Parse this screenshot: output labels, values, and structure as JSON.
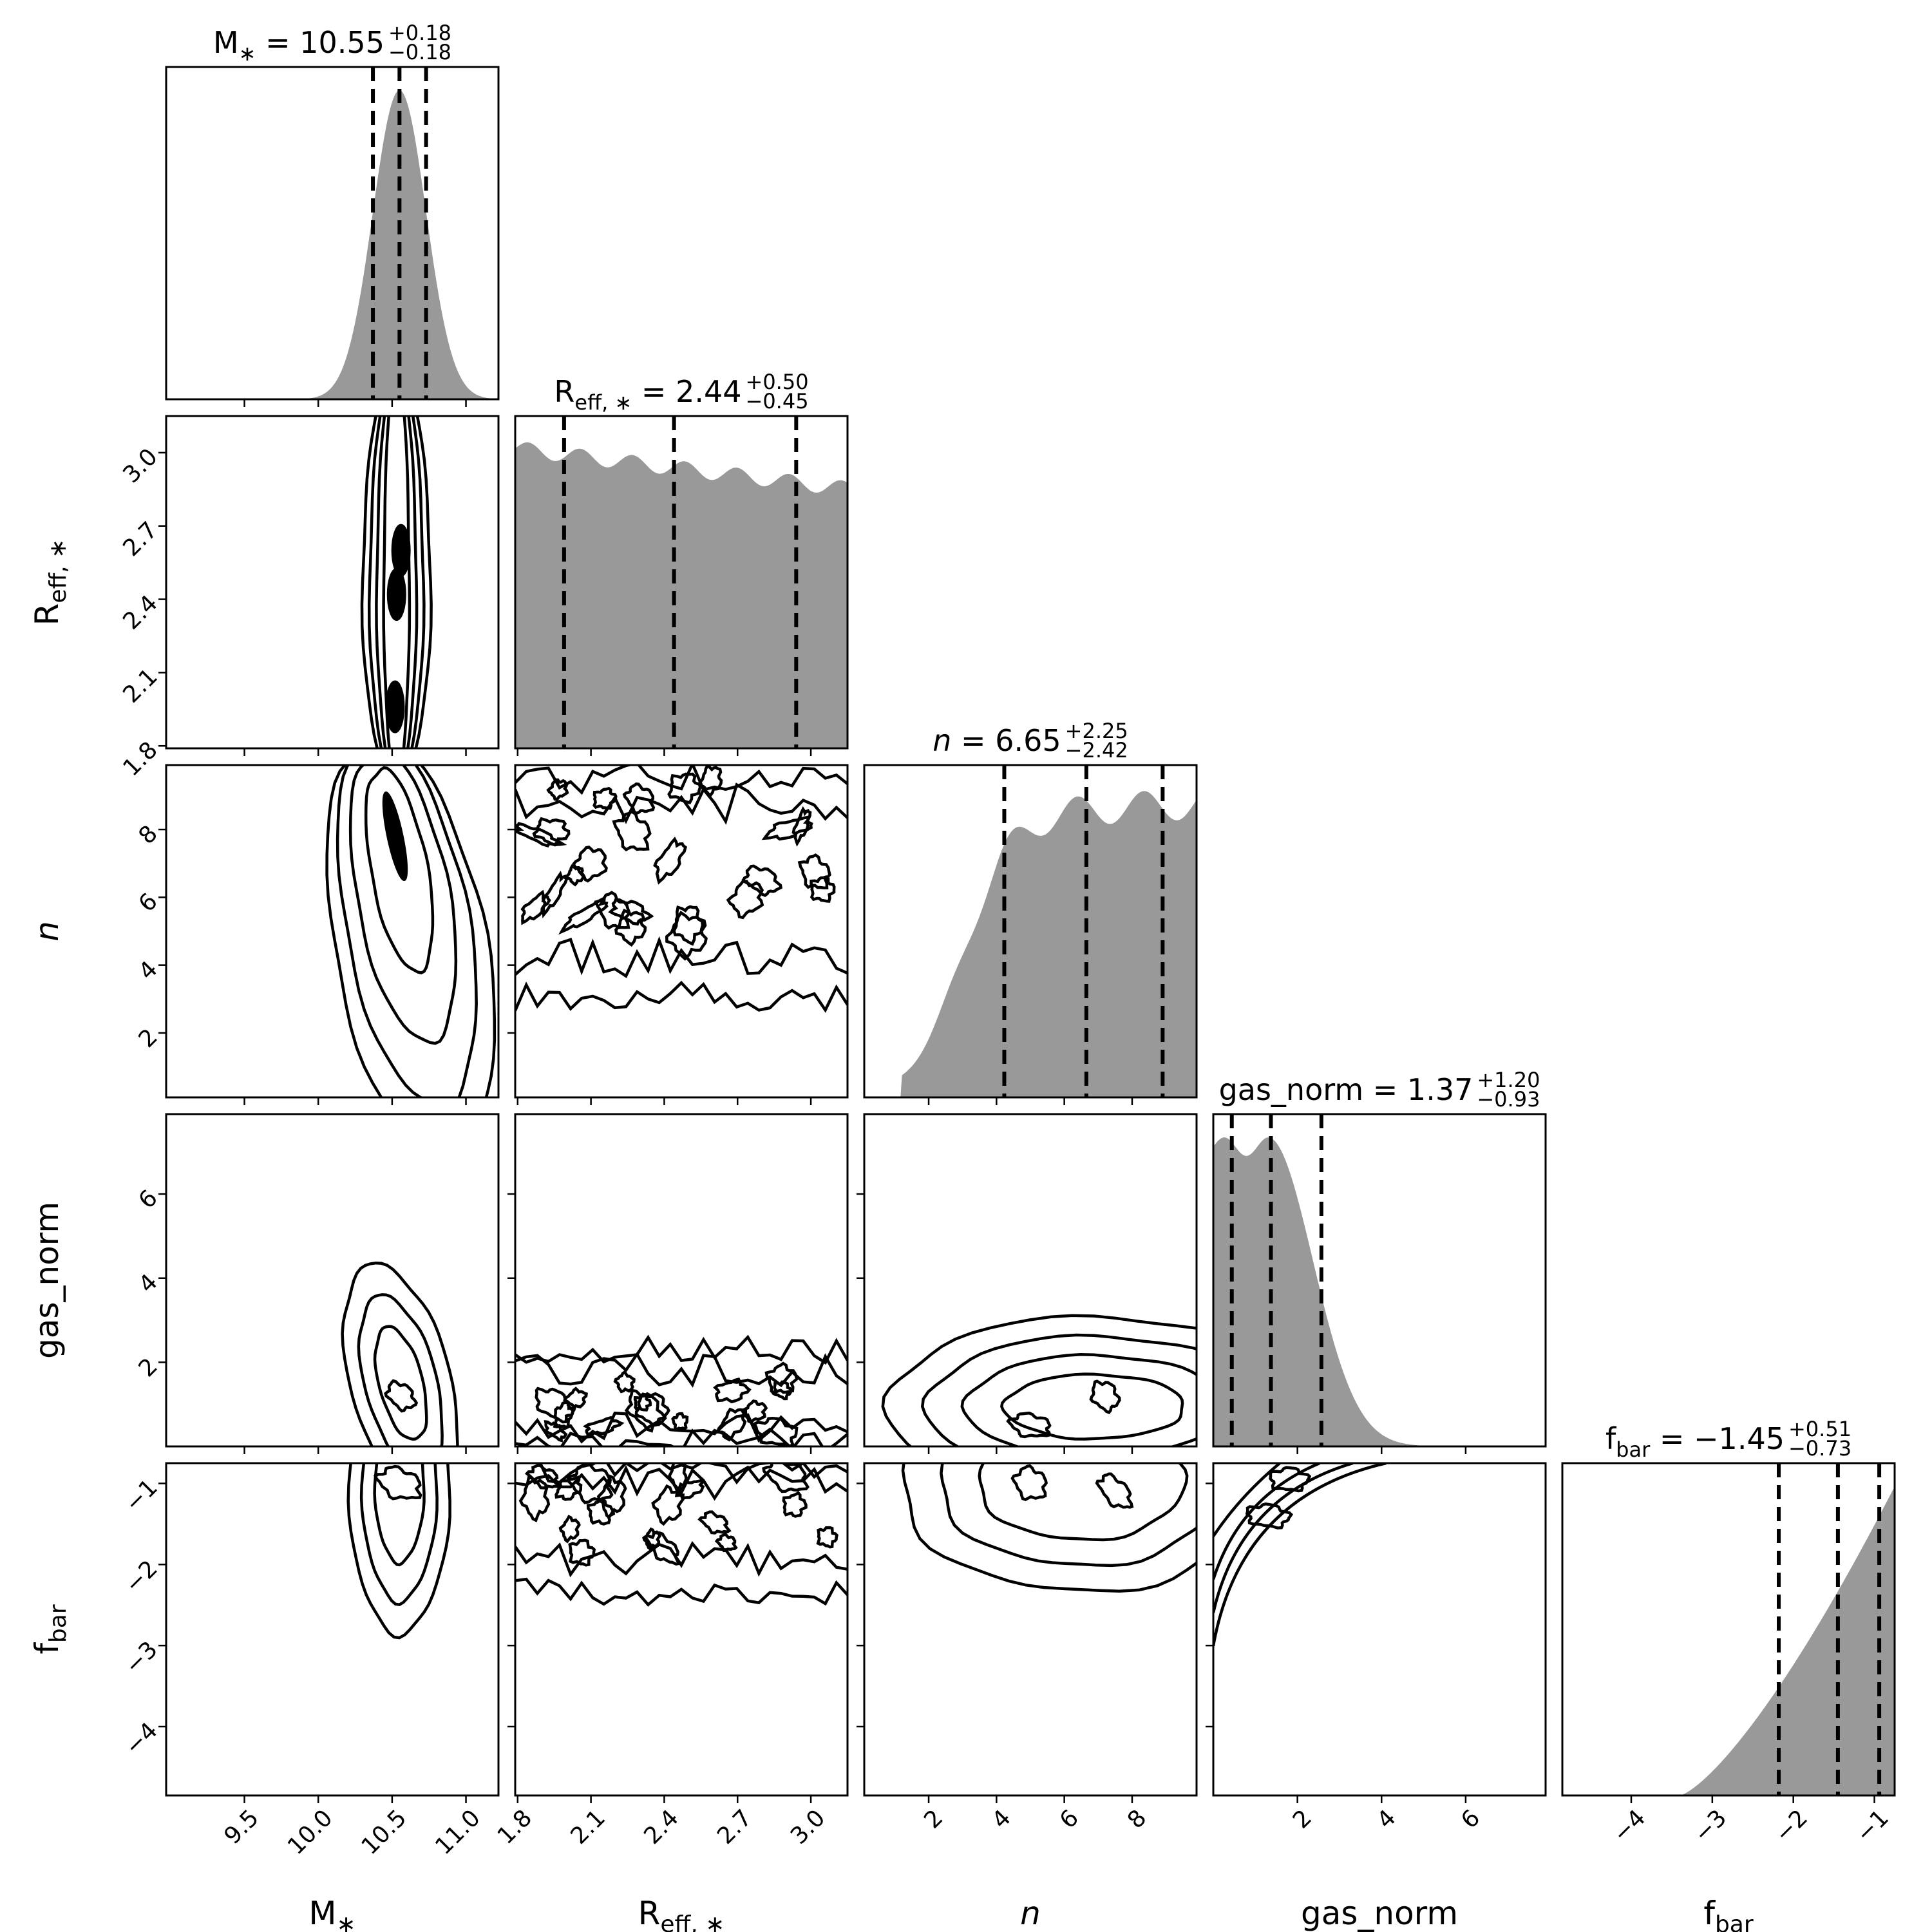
{
  "chart_data": {
    "type": "corner",
    "parameters": [
      {
        "key": "mstar",
        "label": "M∗",
        "label_main": "M",
        "label_sub": "∗",
        "median": 10.55,
        "err_plus": 0.18,
        "err_minus": 0.18,
        "title_value": "10.55",
        "title_plus": "+0.18",
        "title_minus": "−0.18",
        "range": [
          8.97,
          11.22
        ],
        "ticks": [
          9.5,
          10.0,
          10.5,
          11.0
        ],
        "tick_labels": [
          "9.5",
          "10.0",
          "10.5",
          "11.0"
        ],
        "quantiles": [
          10.37,
          10.55,
          10.73
        ],
        "hist_shape": {
          "kind": "gaussian",
          "mu": 10.55,
          "sigma": 0.18
        }
      },
      {
        "key": "reff",
        "label": "Reff, ∗",
        "label_main": "R",
        "label_sub": "eff, ∗",
        "median": 2.44,
        "err_plus": 0.5,
        "err_minus": 0.45,
        "title_value": "2.44",
        "title_plus": "+0.50",
        "title_minus": "−0.45",
        "range": [
          1.79,
          3.15
        ],
        "ticks": [
          1.8,
          2.1,
          2.4,
          2.7,
          3.0
        ],
        "tick_labels": [
          "1.8",
          "2.1",
          "2.4",
          "2.7",
          "3.0"
        ],
        "quantiles": [
          1.99,
          2.44,
          2.94
        ],
        "hist_shape": {
          "kind": "flat_decreasing",
          "start": 0.97,
          "end": 0.84
        }
      },
      {
        "key": "n",
        "label": "n",
        "label_main": "n",
        "label_sub": "",
        "italic": true,
        "median": 6.65,
        "err_plus": 2.25,
        "err_minus": 2.42,
        "title_value": "6.65",
        "title_plus": "+2.25",
        "title_minus": "−2.42",
        "range": [
          0.1,
          9.9
        ],
        "ticks": [
          2,
          4,
          6,
          8
        ],
        "tick_labels": [
          "2",
          "4",
          "6",
          "8"
        ],
        "quantiles": [
          4.23,
          6.65,
          8.9
        ],
        "hist_shape": {
          "kind": "rising_plateau",
          "onset": 1.2,
          "plateau": 5.0
        }
      },
      {
        "key": "gas_norm",
        "label": "gas_norm",
        "label_main": "gas_norm",
        "label_sub": "",
        "median": 1.37,
        "err_plus": 1.2,
        "err_minus": 0.93,
        "title_value": "1.37",
        "title_plus": "+1.20",
        "title_minus": "−0.93",
        "range": [
          0.0,
          7.9
        ],
        "ticks": [
          2,
          4,
          6
        ],
        "tick_labels": [
          "2",
          "4",
          "6"
        ],
        "quantiles": [
          0.44,
          1.37,
          2.57
        ],
        "hist_shape": {
          "kind": "declining_tail",
          "peak": 0.5,
          "scale": 1.5
        }
      },
      {
        "key": "fbar",
        "label": "fbar",
        "label_main": "f",
        "label_sub": "bar",
        "median": -1.45,
        "err_plus": 0.51,
        "err_minus": 0.73,
        "title_value": "−1.45",
        "title_plus": "+0.51",
        "title_minus": "−0.73",
        "range": [
          -4.85,
          -0.75
        ],
        "ticks": [
          -4,
          -3,
          -2,
          -1
        ],
        "tick_labels": [
          "−4",
          "−3",
          "−2",
          "−1"
        ],
        "quantiles": [
          -2.18,
          -1.45,
          -0.94
        ],
        "hist_shape": {
          "kind": "rising_to_edge",
          "onset": -3.4
        }
      }
    ],
    "pairs": [
      {
        "x": "mstar",
        "y": "reff",
        "kind": "vertical_band",
        "cx": 10.53,
        "sx": 0.14,
        "cores": [
          [
            10.53,
            2.42
          ],
          [
            10.52,
            1.96
          ],
          [
            10.56,
            2.6
          ]
        ]
      },
      {
        "x": "mstar",
        "y": "n",
        "kind": "tilted",
        "cx": 10.55,
        "cy": 6.8,
        "cores": [
          [
            10.52,
            7.8
          ]
        ]
      },
      {
        "x": "reff",
        "y": "n",
        "kind": "noisy_band_upper",
        "cores": [
          [
            2.3,
            8.9
          ],
          [
            2.1,
            7.0
          ],
          [
            2.8,
            6.5
          ]
        ]
      },
      {
        "x": "mstar",
        "y": "gas_norm",
        "kind": "blob",
        "cx": 10.56,
        "cy": 1.5,
        "cores": [
          [
            10.56,
            1.2
          ]
        ]
      },
      {
        "x": "reff",
        "y": "gas_norm",
        "kind": "noisy_band_lower",
        "cores": [
          [
            1.95,
            1.0
          ],
          [
            2.35,
            0.9
          ]
        ]
      },
      {
        "x": "n",
        "y": "gas_norm",
        "kind": "blob_right",
        "cx": 6.5,
        "cy": 1.1,
        "cores": [
          [
            5.0,
            0.5
          ],
          [
            7.2,
            1.2
          ]
        ]
      },
      {
        "x": "mstar",
        "y": "fbar",
        "kind": "blob_top",
        "cx": 10.55,
        "cy": -1.5,
        "cores": [
          [
            10.55,
            -1.0
          ]
        ]
      },
      {
        "x": "reff",
        "y": "fbar",
        "kind": "noisy_band_top",
        "cores": [
          [
            2.1,
            -1.0
          ],
          [
            2.9,
            -0.9
          ]
        ]
      },
      {
        "x": "n",
        "y": "fbar",
        "kind": "blob_top_right",
        "cx": 6.5,
        "cy": -1.3,
        "cores": [
          [
            5.0,
            -1.0
          ],
          [
            7.5,
            -1.1
          ]
        ]
      },
      {
        "x": "gas_norm",
        "y": "fbar",
        "kind": "corner_wedge",
        "cores": [
          [
            1.8,
            -0.95
          ],
          [
            1.3,
            -1.4
          ]
        ]
      }
    ],
    "show_titles": true,
    "quantile_levels": [
      0.16,
      0.5,
      0.84
    ],
    "hist_color": "#999999",
    "contour_color": "#000000",
    "grid": false
  }
}
